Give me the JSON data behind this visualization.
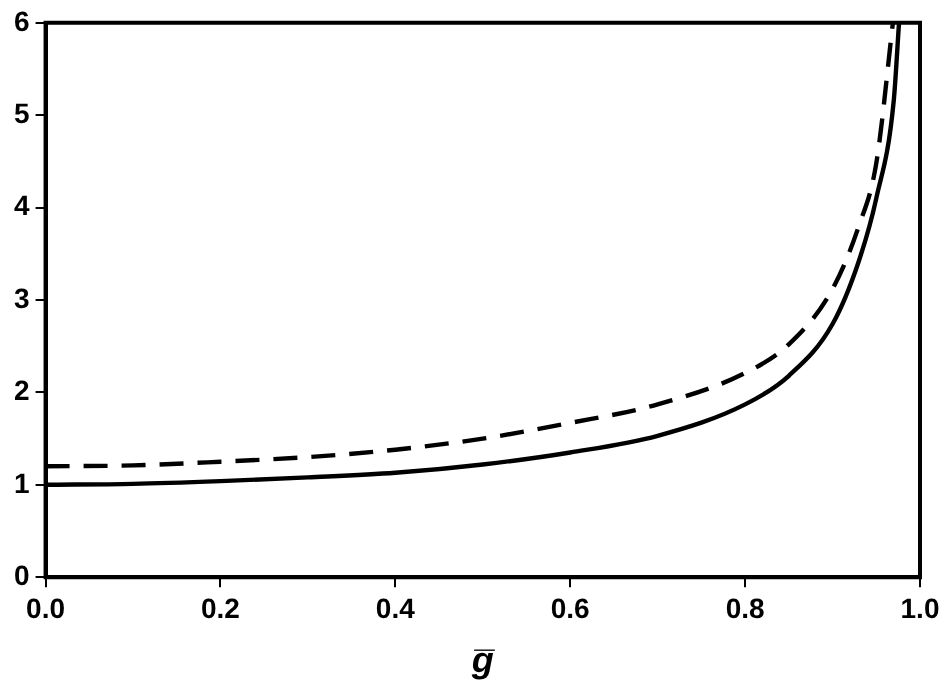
{
  "chart_data": {
    "type": "line",
    "xlabel": "g̅",
    "x": [
      0,
      0.1,
      0.2,
      0.3,
      0.4,
      0.5,
      0.6,
      0.7,
      0.8,
      0.85,
      0.9,
      0.93,
      0.95,
      0.97,
      0.976
    ],
    "series": [
      {
        "color": "#000000",
        "line_style": "solid",
        "values": [
          1,
          1.01,
          1.04,
          1.08,
          1.13,
          1.22,
          1.35,
          1.53,
          1.87,
          2.18,
          2.74,
          3.42,
          4.1,
          5.16,
          6
        ]
      },
      {
        "color": "#000000",
        "line_style": "dashed",
        "x": [
          0,
          0.1,
          0.2,
          0.3,
          0.4,
          0.5,
          0.6,
          0.7,
          0.8,
          0.85,
          0.9,
          0.93,
          0.95,
          0.969
        ],
        "values": [
          1.2,
          1.21,
          1.25,
          1.3,
          1.38,
          1.5,
          1.67,
          1.87,
          2.21,
          2.52,
          3.12,
          3.8,
          4.48,
          6
        ]
      }
    ],
    "xlim": [
      0,
      1
    ],
    "xticks": [
      {
        "value": 0,
        "label": "0.0"
      },
      {
        "value": 0.2,
        "label": "0.2"
      },
      {
        "value": 0.4,
        "label": "0.4"
      },
      {
        "value": 0.6,
        "label": "0.6"
      },
      {
        "value": 0.8,
        "label": "0.8"
      },
      {
        "value": 1,
        "label": "1.0"
      }
    ],
    "ylim": [
      0,
      6
    ],
    "yticks": [
      0,
      1,
      2,
      3,
      4,
      5,
      6
    ],
    "grid": false,
    "legend": false,
    "marker": "none"
  }
}
